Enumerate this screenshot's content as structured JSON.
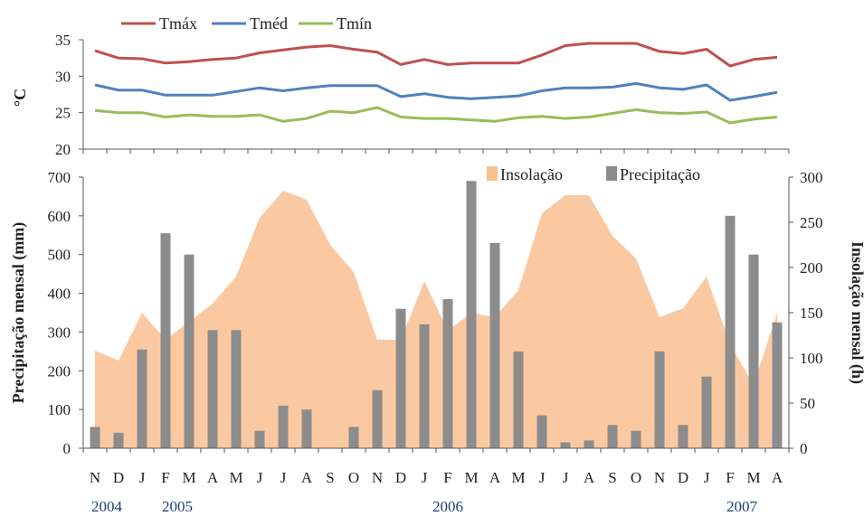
{
  "chart_data": [
    {
      "type": "line",
      "ylabel": "°C",
      "ylim": [
        20,
        35
      ],
      "yticks": [
        "20",
        "25",
        "30",
        "35"
      ],
      "legend_position": "top-left",
      "series": [
        {
          "name": "Tmáx",
          "color": "#c0504d",
          "values": [
            33.5,
            32.5,
            32.4,
            31.8,
            32.0,
            32.3,
            32.5,
            33.2,
            33.6,
            34.0,
            34.2,
            33.7,
            33.3,
            31.6,
            32.3,
            31.6,
            31.8,
            31.8,
            31.8,
            32.9,
            34.2,
            34.5,
            34.5,
            34.5,
            33.4,
            33.1,
            33.7,
            31.4,
            32.3,
            32.6
          ]
        },
        {
          "name": "Tméd",
          "color": "#4f81bd",
          "values": [
            28.8,
            28.1,
            28.1,
            27.4,
            27.4,
            27.4,
            27.9,
            28.4,
            28.0,
            28.4,
            28.7,
            28.7,
            28.7,
            27.2,
            27.6,
            27.1,
            26.9,
            27.1,
            27.3,
            28.0,
            28.4,
            28.4,
            28.5,
            29.0,
            28.4,
            28.2,
            28.8,
            26.7,
            27.2,
            27.8
          ]
        },
        {
          "name": "Tmín",
          "color": "#9bbb59",
          "values": [
            25.3,
            25.0,
            25.0,
            24.4,
            24.7,
            24.5,
            24.5,
            24.7,
            23.8,
            24.2,
            25.2,
            25.0,
            25.7,
            24.4,
            24.2,
            24.2,
            24.0,
            23.8,
            24.3,
            24.5,
            24.2,
            24.4,
            24.9,
            25.4,
            25.0,
            24.9,
            25.1,
            23.6,
            24.1,
            24.4
          ]
        }
      ]
    },
    {
      "type": "bar",
      "ylabel": "Precipitação mensal (mm)",
      "y2label": "Insolação mensal (h)",
      "ylim": [
        0,
        700
      ],
      "y2lim": [
        0,
        300
      ],
      "yticks": [
        "0",
        "100",
        "200",
        "300",
        "400",
        "500",
        "600",
        "700"
      ],
      "y2ticks": [
        "0",
        "50",
        "100",
        "150",
        "200",
        "250",
        "300"
      ],
      "legend_position": "top-right",
      "categories": [
        "N",
        "D",
        "J",
        "F",
        "M",
        "A",
        "M",
        "J",
        "J",
        "A",
        "S",
        "O",
        "N",
        "D",
        "J",
        "F",
        "M",
        "A",
        "M",
        "J",
        "J",
        "A",
        "S",
        "O",
        "N",
        "D",
        "J",
        "F",
        "M",
        "A"
      ],
      "years": [
        {
          "label": "2004",
          "index": 0.5
        },
        {
          "label": "2005",
          "index": 3.5
        },
        {
          "label": "2006",
          "index": 15
        },
        {
          "label": "2007",
          "index": 27.5
        }
      ],
      "series": [
        {
          "name": "Insolação",
          "kind": "area",
          "axis": "right",
          "color": "#fac090",
          "values": [
            108,
            97,
            150,
            120,
            140,
            160,
            190,
            255,
            285,
            275,
            225,
            195,
            120,
            120,
            185,
            130,
            150,
            145,
            175,
            260,
            280,
            280,
            235,
            210,
            145,
            155,
            190,
            115,
            70,
            150
          ]
        },
        {
          "name": "Precipitação",
          "kind": "bar",
          "axis": "left",
          "color": "#8c8c8c",
          "values": [
            55,
            40,
            255,
            555,
            500,
            305,
            305,
            45,
            110,
            100,
            0,
            55,
            150,
            360,
            320,
            385,
            690,
            530,
            250,
            85,
            15,
            20,
            60,
            45,
            250,
            60,
            185,
            600,
            500,
            325
          ]
        }
      ]
    }
  ]
}
